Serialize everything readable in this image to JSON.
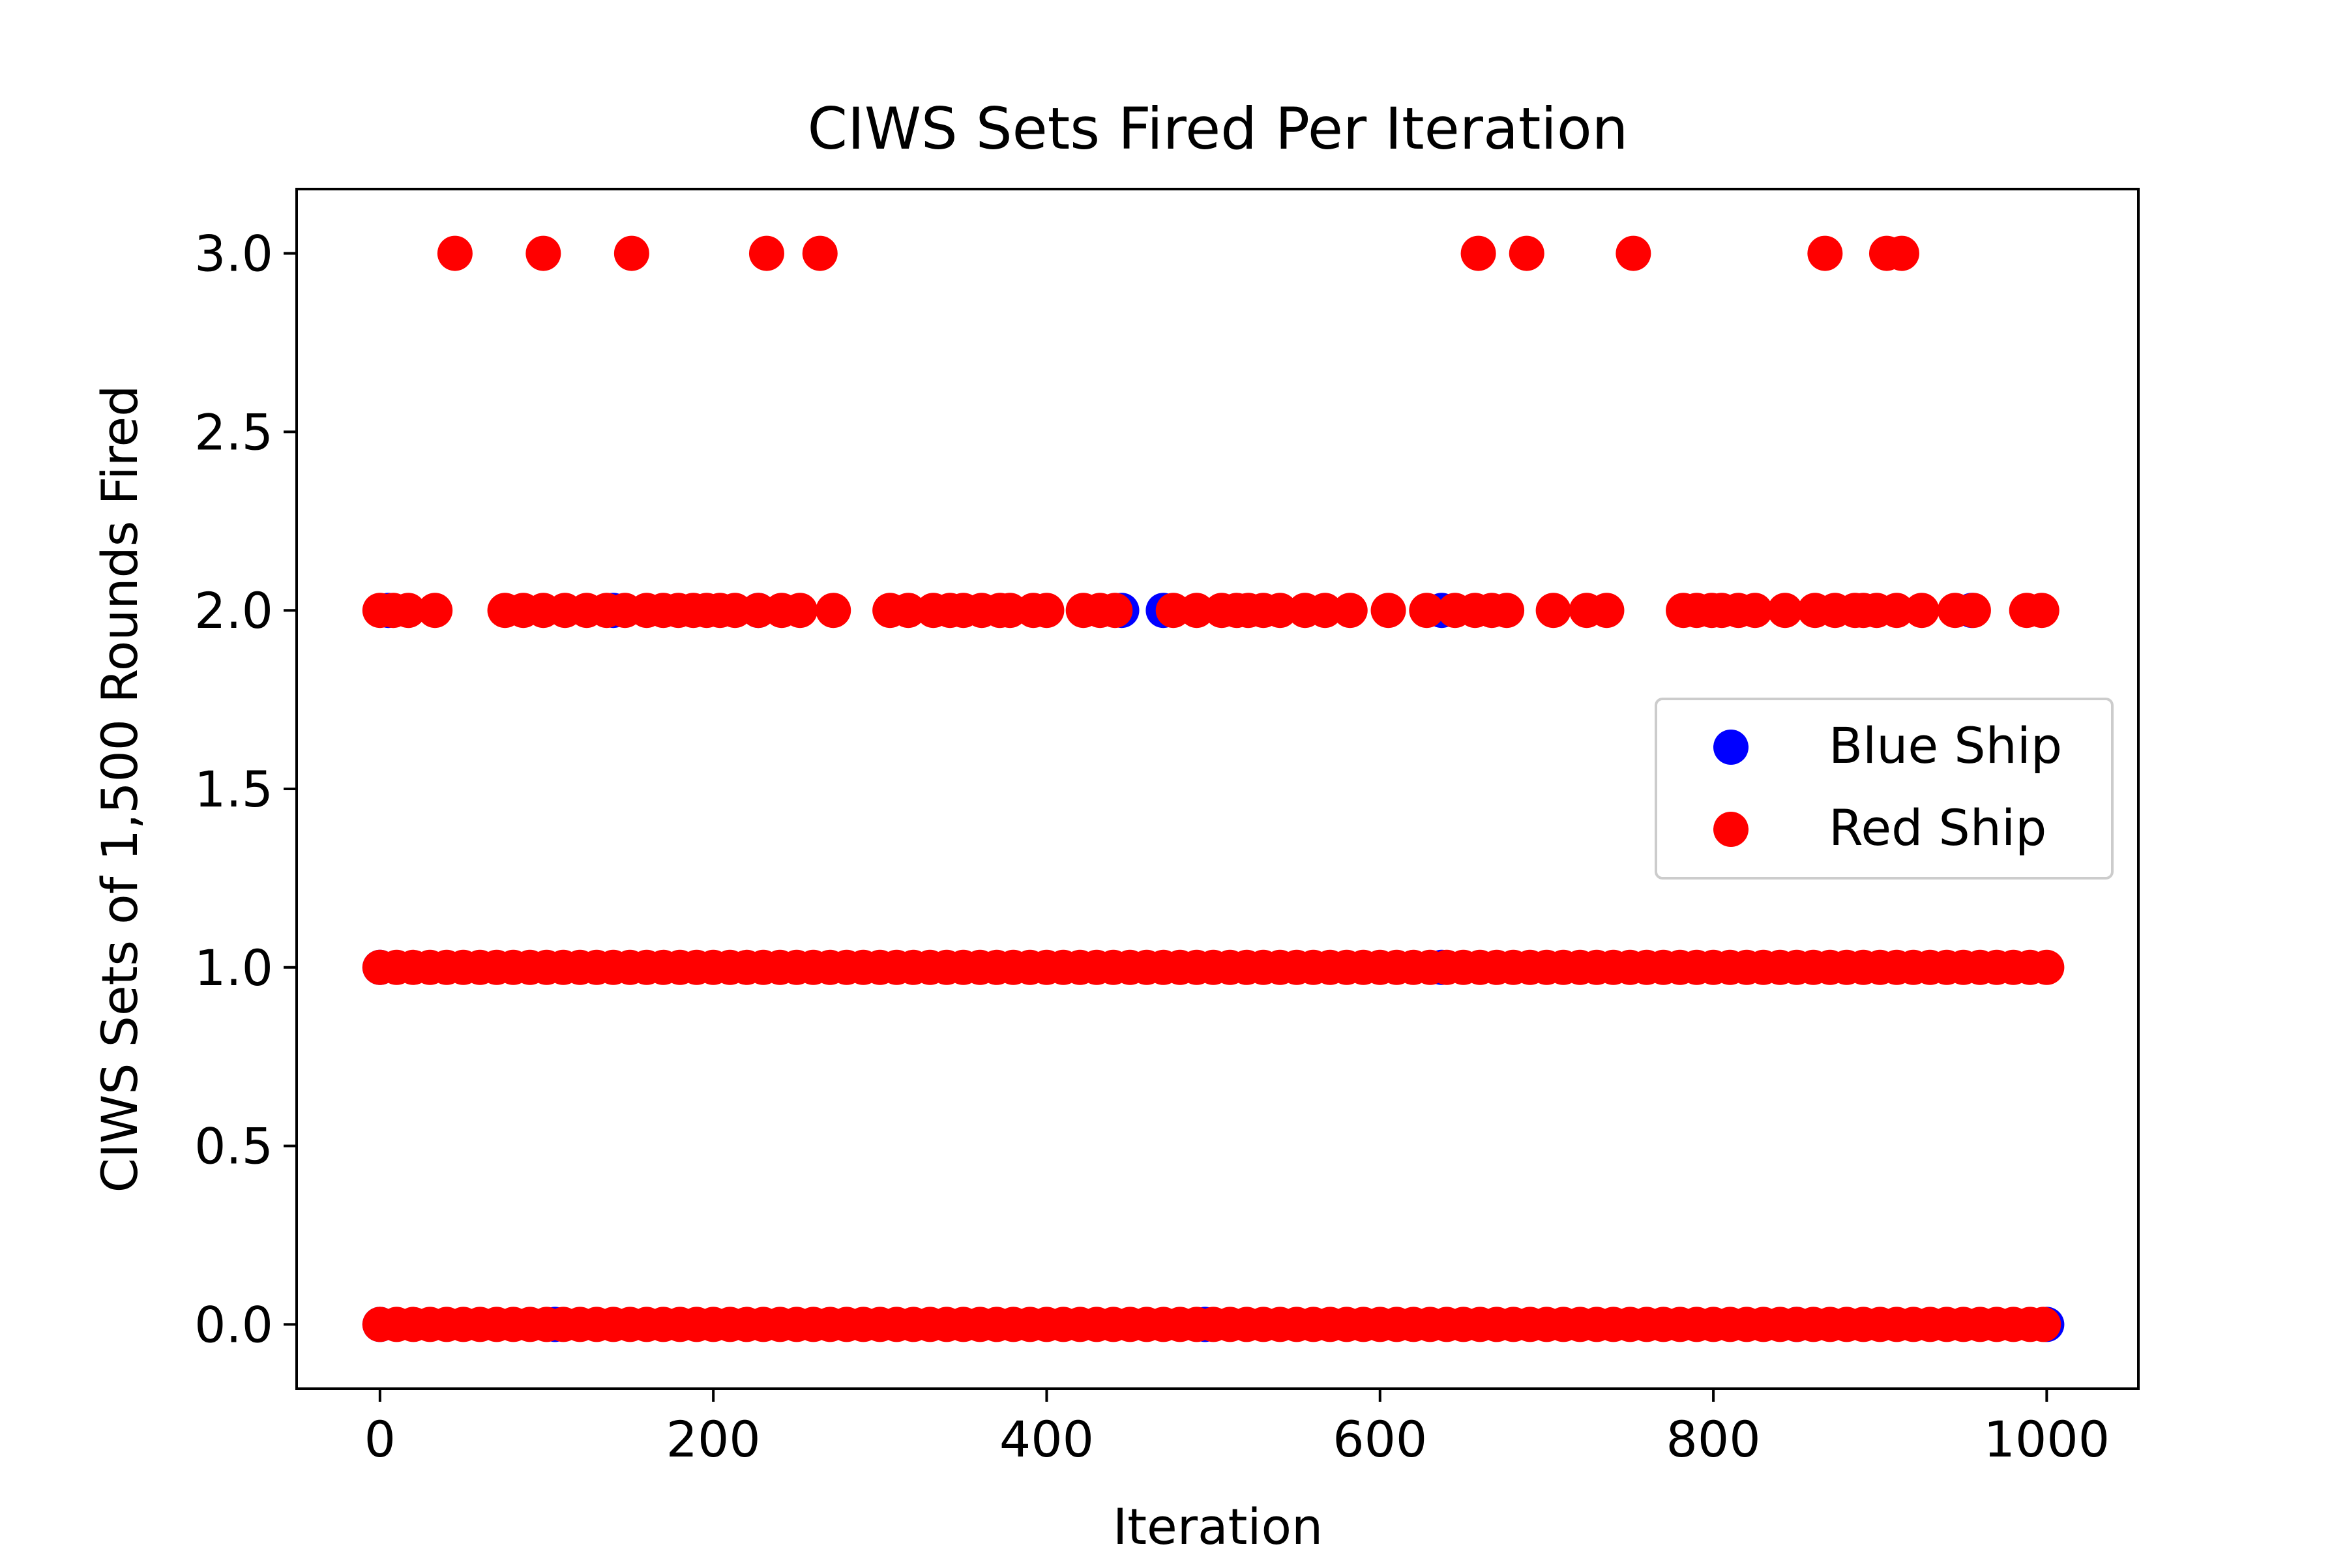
{
  "chart_data": {
    "type": "scatter",
    "title": "CIWS Sets Fired Per Iteration",
    "xlabel": "Iteration",
    "ylabel": "CIWS Sets of 1,500 Rounds Fired",
    "xlim": [
      -50,
      1055
    ],
    "ylim": [
      -0.18,
      3.18
    ],
    "xticks": [
      0,
      200,
      400,
      600,
      800,
      1000
    ],
    "yticks": [
      0.0,
      0.5,
      1.0,
      1.5,
      2.0,
      2.5,
      3.0
    ],
    "xtick_labels": [
      "0",
      "200",
      "400",
      "600",
      "800",
      "1000"
    ],
    "ytick_labels": [
      "0.0",
      "0.5",
      "1.0",
      "1.5",
      "2.0",
      "2.5",
      "3.0"
    ],
    "grid": false,
    "legend_position": "center-right",
    "series": [
      {
        "name": "Blue Ship",
        "color": "#0000ff",
        "points": [
          [
            0,
            0
          ],
          [
            1000,
            0
          ],
          [
            105,
            0
          ],
          [
            495,
            0
          ],
          [
            850,
            0
          ],
          [
            0,
            1
          ],
          [
            637,
            1
          ],
          [
            5,
            2
          ],
          [
            140,
            2
          ],
          [
            227,
            2
          ],
          [
            445,
            2
          ],
          [
            470,
            2
          ],
          [
            637,
            2
          ],
          [
            955,
            2
          ]
        ]
      },
      {
        "name": "Red Ship",
        "color": "#ff0000",
        "points": [
          [
            45,
            3
          ],
          [
            98,
            3
          ],
          [
            151,
            3
          ],
          [
            232,
            3
          ],
          [
            264,
            3
          ],
          [
            659,
            3
          ],
          [
            688,
            3
          ],
          [
            752,
            3
          ],
          [
            867,
            3
          ],
          [
            904,
            3
          ],
          [
            913,
            3
          ],
          [
            0,
            2
          ],
          [
            8,
            2
          ],
          [
            17,
            2
          ],
          [
            33,
            2
          ],
          [
            75,
            2
          ],
          [
            86,
            2
          ],
          [
            98,
            2
          ],
          [
            111,
            2
          ],
          [
            124,
            2
          ],
          [
            136,
            2
          ],
          [
            147,
            2
          ],
          [
            160,
            2
          ],
          [
            170,
            2
          ],
          [
            179,
            2
          ],
          [
            188,
            2
          ],
          [
            196,
            2
          ],
          [
            204,
            2
          ],
          [
            213,
            2
          ],
          [
            227,
            2
          ],
          [
            241,
            2
          ],
          [
            252,
            2
          ],
          [
            272,
            2
          ],
          [
            306,
            2
          ],
          [
            317,
            2
          ],
          [
            332,
            2
          ],
          [
            342,
            2
          ],
          [
            350,
            2
          ],
          [
            361,
            2
          ],
          [
            372,
            2
          ],
          [
            378,
            2
          ],
          [
            392,
            2
          ],
          [
            400,
            2
          ],
          [
            422,
            2
          ],
          [
            432,
            2
          ],
          [
            441,
            2
          ],
          [
            476,
            2
          ],
          [
            490,
            2
          ],
          [
            505,
            2
          ],
          [
            514,
            2
          ],
          [
            521,
            2
          ],
          [
            530,
            2
          ],
          [
            540,
            2
          ],
          [
            555,
            2
          ],
          [
            567,
            2
          ],
          [
            582,
            2
          ],
          [
            605,
            2
          ],
          [
            628,
            2
          ],
          [
            645,
            2
          ],
          [
            657,
            2
          ],
          [
            667,
            2
          ],
          [
            676,
            2
          ],
          [
            704,
            2
          ],
          [
            724,
            2
          ],
          [
            736,
            2
          ],
          [
            782,
            2
          ],
          [
            790,
            2
          ],
          [
            799,
            2
          ],
          [
            805,
            2
          ],
          [
            815,
            2
          ],
          [
            825,
            2
          ],
          [
            843,
            2
          ],
          [
            861,
            2
          ],
          [
            873,
            2
          ],
          [
            885,
            2
          ],
          [
            890,
            2
          ],
          [
            898,
            2
          ],
          [
            910,
            2
          ],
          [
            925,
            2
          ],
          [
            945,
            2
          ],
          [
            956,
            2
          ],
          [
            988,
            2
          ],
          [
            997,
            2
          ],
          [
            0,
            1
          ],
          [
            10,
            1
          ],
          [
            20,
            1
          ],
          [
            30,
            1
          ],
          [
            40,
            1
          ],
          [
            50,
            1
          ],
          [
            60,
            1
          ],
          [
            70,
            1
          ],
          [
            80,
            1
          ],
          [
            90,
            1
          ],
          [
            100,
            1
          ],
          [
            110,
            1
          ],
          [
            120,
            1
          ],
          [
            130,
            1
          ],
          [
            140,
            1
          ],
          [
            150,
            1
          ],
          [
            160,
            1
          ],
          [
            170,
            1
          ],
          [
            180,
            1
          ],
          [
            190,
            1
          ],
          [
            200,
            1
          ],
          [
            210,
            1
          ],
          [
            220,
            1
          ],
          [
            230,
            1
          ],
          [
            240,
            1
          ],
          [
            250,
            1
          ],
          [
            260,
            1
          ],
          [
            270,
            1
          ],
          [
            280,
            1
          ],
          [
            290,
            1
          ],
          [
            300,
            1
          ],
          [
            310,
            1
          ],
          [
            320,
            1
          ],
          [
            330,
            1
          ],
          [
            340,
            1
          ],
          [
            350,
            1
          ],
          [
            360,
            1
          ],
          [
            370,
            1
          ],
          [
            380,
            1
          ],
          [
            390,
            1
          ],
          [
            400,
            1
          ],
          [
            410,
            1
          ],
          [
            420,
            1
          ],
          [
            430,
            1
          ],
          [
            440,
            1
          ],
          [
            450,
            1
          ],
          [
            460,
            1
          ],
          [
            470,
            1
          ],
          [
            480,
            1
          ],
          [
            490,
            1
          ],
          [
            500,
            1
          ],
          [
            510,
            1
          ],
          [
            520,
            1
          ],
          [
            530,
            1
          ],
          [
            540,
            1
          ],
          [
            550,
            1
          ],
          [
            560,
            1
          ],
          [
            570,
            1
          ],
          [
            580,
            1
          ],
          [
            590,
            1
          ],
          [
            600,
            1
          ],
          [
            610,
            1
          ],
          [
            620,
            1
          ],
          [
            630,
            1
          ],
          [
            640,
            1
          ],
          [
            650,
            1
          ],
          [
            660,
            1
          ],
          [
            670,
            1
          ],
          [
            680,
            1
          ],
          [
            690,
            1
          ],
          [
            700,
            1
          ],
          [
            710,
            1
          ],
          [
            720,
            1
          ],
          [
            730,
            1
          ],
          [
            740,
            1
          ],
          [
            750,
            1
          ],
          [
            760,
            1
          ],
          [
            770,
            1
          ],
          [
            780,
            1
          ],
          [
            790,
            1
          ],
          [
            800,
            1
          ],
          [
            810,
            1
          ],
          [
            820,
            1
          ],
          [
            830,
            1
          ],
          [
            840,
            1
          ],
          [
            850,
            1
          ],
          [
            860,
            1
          ],
          [
            870,
            1
          ],
          [
            880,
            1
          ],
          [
            890,
            1
          ],
          [
            900,
            1
          ],
          [
            910,
            1
          ],
          [
            920,
            1
          ],
          [
            930,
            1
          ],
          [
            940,
            1
          ],
          [
            950,
            1
          ],
          [
            960,
            1
          ],
          [
            970,
            1
          ],
          [
            980,
            1
          ],
          [
            990,
            1
          ],
          [
            1000,
            1
          ],
          [
            0,
            0
          ],
          [
            10,
            0
          ],
          [
            20,
            0
          ],
          [
            30,
            0
          ],
          [
            40,
            0
          ],
          [
            50,
            0
          ],
          [
            60,
            0
          ],
          [
            70,
            0
          ],
          [
            80,
            0
          ],
          [
            90,
            0
          ],
          [
            100,
            0
          ],
          [
            110,
            0
          ],
          [
            120,
            0
          ],
          [
            130,
            0
          ],
          [
            140,
            0
          ],
          [
            150,
            0
          ],
          [
            160,
            0
          ],
          [
            170,
            0
          ],
          [
            180,
            0
          ],
          [
            190,
            0
          ],
          [
            200,
            0
          ],
          [
            210,
            0
          ],
          [
            220,
            0
          ],
          [
            230,
            0
          ],
          [
            240,
            0
          ],
          [
            250,
            0
          ],
          [
            260,
            0
          ],
          [
            270,
            0
          ],
          [
            280,
            0
          ],
          [
            290,
            0
          ],
          [
            300,
            0
          ],
          [
            310,
            0
          ],
          [
            320,
            0
          ],
          [
            330,
            0
          ],
          [
            340,
            0
          ],
          [
            350,
            0
          ],
          [
            360,
            0
          ],
          [
            370,
            0
          ],
          [
            380,
            0
          ],
          [
            390,
            0
          ],
          [
            400,
            0
          ],
          [
            410,
            0
          ],
          [
            420,
            0
          ],
          [
            430,
            0
          ],
          [
            440,
            0
          ],
          [
            450,
            0
          ],
          [
            460,
            0
          ],
          [
            470,
            0
          ],
          [
            480,
            0
          ],
          [
            490,
            0
          ],
          [
            500,
            0
          ],
          [
            510,
            0
          ],
          [
            520,
            0
          ],
          [
            530,
            0
          ],
          [
            540,
            0
          ],
          [
            550,
            0
          ],
          [
            560,
            0
          ],
          [
            570,
            0
          ],
          [
            580,
            0
          ],
          [
            590,
            0
          ],
          [
            600,
            0
          ],
          [
            610,
            0
          ],
          [
            620,
            0
          ],
          [
            630,
            0
          ],
          [
            640,
            0
          ],
          [
            650,
            0
          ],
          [
            660,
            0
          ],
          [
            670,
            0
          ],
          [
            680,
            0
          ],
          [
            690,
            0
          ],
          [
            700,
            0
          ],
          [
            710,
            0
          ],
          [
            720,
            0
          ],
          [
            730,
            0
          ],
          [
            740,
            0
          ],
          [
            750,
            0
          ],
          [
            760,
            0
          ],
          [
            770,
            0
          ],
          [
            780,
            0
          ],
          [
            790,
            0
          ],
          [
            800,
            0
          ],
          [
            810,
            0
          ],
          [
            820,
            0
          ],
          [
            830,
            0
          ],
          [
            840,
            0
          ],
          [
            850,
            0
          ],
          [
            860,
            0
          ],
          [
            870,
            0
          ],
          [
            880,
            0
          ],
          [
            890,
            0
          ],
          [
            900,
            0
          ],
          [
            910,
            0
          ],
          [
            920,
            0
          ],
          [
            930,
            0
          ],
          [
            940,
            0
          ],
          [
            950,
            0
          ],
          [
            960,
            0
          ],
          [
            970,
            0
          ],
          [
            980,
            0
          ],
          [
            990,
            0
          ],
          [
            998,
            0
          ]
        ]
      }
    ]
  }
}
